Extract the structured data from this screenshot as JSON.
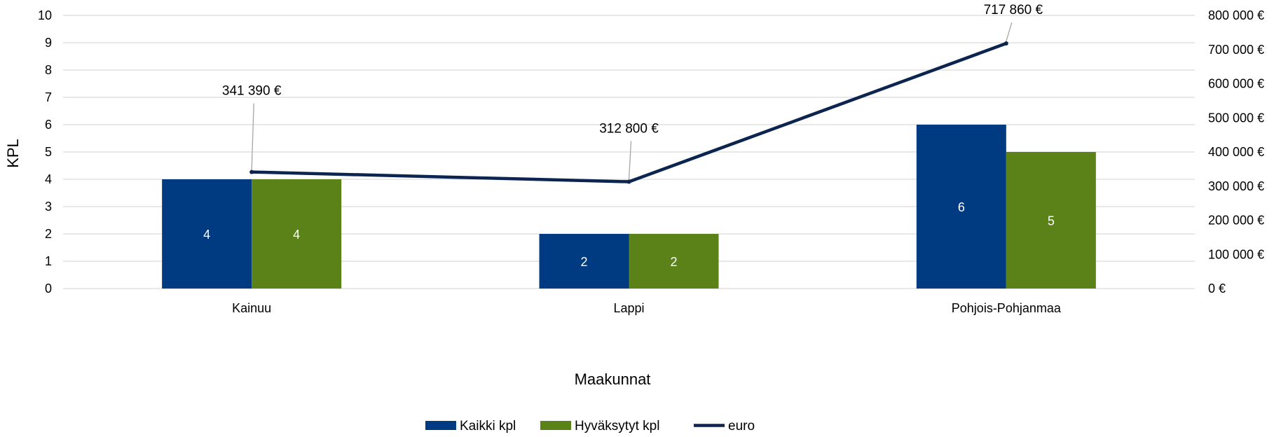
{
  "chart_data": {
    "type": "bar",
    "categories": [
      "Kainuu",
      "Lappi",
      "Pohjois-Pohjanmaa"
    ],
    "series": [
      {
        "name": "Kaikki kpl",
        "kind": "bar",
        "axis": "left",
        "color": "#003A80",
        "values": [
          4,
          2,
          6
        ],
        "labels": [
          "4",
          "2",
          "6"
        ]
      },
      {
        "name": "Hyväksytyt kpl",
        "kind": "bar",
        "axis": "left",
        "color": "#5A8219",
        "values": [
          4,
          2,
          5
        ],
        "labels": [
          "4",
          "2",
          "5"
        ]
      },
      {
        "name": "euro",
        "kind": "line",
        "axis": "right",
        "color": "#0B2550",
        "values": [
          341390,
          312800,
          717860
        ],
        "labels": [
          "341 390 €",
          "312 800 €",
          "717 860 €"
        ]
      }
    ],
    "title": "",
    "xlabel": "Maakunnat",
    "ylabel": "KPL",
    "ylim": [
      0,
      10
    ],
    "yticks": [
      "0",
      "1",
      "2",
      "3",
      "4",
      "5",
      "6",
      "7",
      "8",
      "9",
      "10"
    ],
    "y2lim": [
      0,
      800000
    ],
    "y2ticks": [
      "0 €",
      "100 000 €",
      "200 000 €",
      "300 000 €",
      "400 000 €",
      "500 000 €",
      "600 000 €",
      "700 000 €",
      "800 000 €"
    ],
    "grid": true,
    "legend": "bottom-center",
    "gridline_color": "#d9d9d9"
  }
}
